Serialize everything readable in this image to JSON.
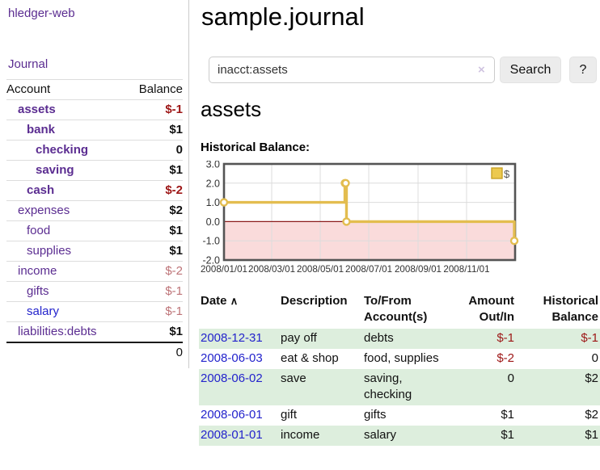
{
  "app": {
    "brand": "hledger-web",
    "nav_journal": "Journal"
  },
  "header": {
    "title": "sample.journal"
  },
  "search": {
    "value": "inacct:assets",
    "clear_icon": "×",
    "button": "Search",
    "help_button": "?"
  },
  "account_page": {
    "title": "assets",
    "chart_label": "Historical Balance:"
  },
  "sidebar": {
    "accounts_table": {
      "headers": {
        "account": "Account",
        "balance": "Balance"
      },
      "rows": [
        {
          "name": "assets",
          "depth": 1,
          "bold": true,
          "blue": false,
          "balance": "$-1",
          "balance_style": "neg-strong"
        },
        {
          "name": "bank",
          "depth": 2,
          "bold": true,
          "blue": false,
          "balance": "$1",
          "balance_style": "pos"
        },
        {
          "name": "checking",
          "depth": 3,
          "bold": true,
          "blue": false,
          "balance": "0",
          "balance_style": "pos"
        },
        {
          "name": "saving",
          "depth": 3,
          "bold": true,
          "blue": false,
          "balance": "$1",
          "balance_style": "pos"
        },
        {
          "name": "cash",
          "depth": 2,
          "bold": true,
          "blue": false,
          "balance": "$-2",
          "balance_style": "neg-strong"
        },
        {
          "name": "expenses",
          "depth": 1,
          "bold": false,
          "blue": false,
          "balance": "$2",
          "balance_style": "pos"
        },
        {
          "name": "food",
          "depth": 2,
          "bold": false,
          "blue": false,
          "balance": "$1",
          "balance_style": "pos"
        },
        {
          "name": "supplies",
          "depth": 2,
          "bold": false,
          "blue": false,
          "balance": "$1",
          "balance_style": "pos"
        },
        {
          "name": "income",
          "depth": 1,
          "bold": false,
          "blue": false,
          "balance": "$-2",
          "balance_style": "neg-soft"
        },
        {
          "name": "gifts",
          "depth": 2,
          "bold": false,
          "blue": false,
          "balance": "$-1",
          "balance_style": "neg-soft"
        },
        {
          "name": "salary",
          "depth": 2,
          "bold": false,
          "blue": true,
          "balance": "$-1",
          "balance_style": "neg-soft"
        },
        {
          "name": "liabilities:debts",
          "depth": 1,
          "bold": false,
          "blue": false,
          "balance": "$1",
          "balance_style": "pos"
        }
      ],
      "total": "0"
    }
  },
  "chart_data": {
    "type": "line",
    "step": true,
    "title": "Historical Balance:",
    "series": [
      {
        "name": "$",
        "color": "#e3bd4f",
        "points": [
          {
            "date": "2008-01-01",
            "value": 1
          },
          {
            "date": "2008-06-01",
            "value": 2
          },
          {
            "date": "2008-06-02",
            "value": 2
          },
          {
            "date": "2008-06-03",
            "value": 0
          },
          {
            "date": "2008-12-31",
            "value": -1
          }
        ]
      }
    ],
    "x_range": [
      "2008-01-01",
      "2009-01-01"
    ],
    "x_ticks": [
      {
        "date": "2008-01-01",
        "label": "2008/01/01"
      },
      {
        "date": "2008-03-01",
        "label": "2008/03/01"
      },
      {
        "date": "2008-05-01",
        "label": "2008/05/01"
      },
      {
        "date": "2008-07-01",
        "label": "2008/07/01"
      },
      {
        "date": "2008-09-01",
        "label": "2008/09/01"
      },
      {
        "date": "2008-11-01",
        "label": "2008/11/01"
      }
    ],
    "y_ticks": [
      {
        "value": 3,
        "label": "3.0"
      },
      {
        "value": 2,
        "label": "2.0"
      },
      {
        "value": 1,
        "label": "1.0"
      },
      {
        "value": 0,
        "label": "0.0"
      },
      {
        "value": -1,
        "label": "-1.0"
      },
      {
        "value": -2,
        "label": "-2.0"
      }
    ],
    "ylim": [
      -2,
      3
    ],
    "grid": true,
    "legend": "$",
    "legend_position": "top-right",
    "colors": {
      "line": "#e3bd4f",
      "marker_fill": "#ffffff",
      "negative_fill": "#fadbdb",
      "zero_line": "#8b1a1a",
      "border": "#545454",
      "grid": "#dcdcdc",
      "legend_fill": "#ecc94f",
      "legend_border": "#c9a227",
      "tick_text": "#333333"
    }
  },
  "register": {
    "headers": {
      "date": "Date",
      "sort_icon": "∧",
      "description": "Description",
      "accounts": "To/From Account(s)",
      "amount": "Amount Out/In",
      "balance": "Historical Balance"
    },
    "rows": [
      {
        "date": "2008-12-31",
        "description": "pay off",
        "accounts": "debts",
        "amount": "$-1",
        "amount_style": "neg-strong",
        "balance": "$-1",
        "balance_style": "neg-strong",
        "shaded": true
      },
      {
        "date": "2008-06-03",
        "description": "eat & shop",
        "accounts": "food, supplies",
        "amount": "$-2",
        "amount_style": "neg-strong",
        "balance": "0",
        "balance_style": "pos",
        "shaded": false
      },
      {
        "date": "2008-06-02",
        "description": "save",
        "accounts": "saving, checking",
        "amount": "0",
        "amount_style": "pos",
        "balance": "$2",
        "balance_style": "pos",
        "shaded": true
      },
      {
        "date": "2008-06-01",
        "description": "gift",
        "accounts": "gifts",
        "amount": "$1",
        "amount_style": "pos",
        "balance": "$2",
        "balance_style": "pos",
        "shaded": false
      },
      {
        "date": "2008-01-01",
        "description": "income",
        "accounts": "salary",
        "amount": "$1",
        "amount_style": "pos",
        "balance": "$1",
        "balance_style": "pos",
        "shaded": true
      }
    ]
  }
}
